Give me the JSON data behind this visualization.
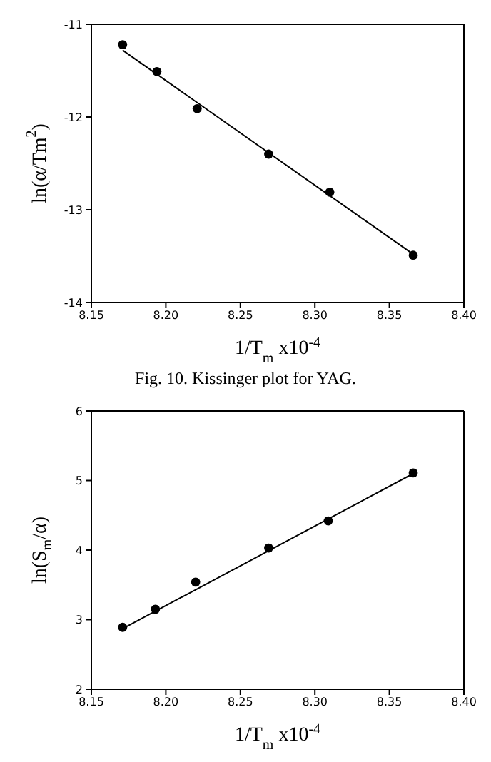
{
  "chart_data": [
    {
      "type": "scatter",
      "xlabel": "1/T$_{m}$ x10$^{-4}$",
      "ylabel": "ln(α/Tm$^{2}$)",
      "annotations": [
        "Fig. 10. Kissinger plot for YAG."
      ],
      "marker": "circle",
      "xlim": [
        8.15,
        8.4
      ],
      "xticks": [
        {
          "value": 8.15,
          "label": "8.15"
        },
        {
          "value": 8.2,
          "label": "8.20"
        },
        {
          "value": 8.25,
          "label": "8.25"
        },
        {
          "value": 8.3,
          "label": "8.30"
        },
        {
          "value": 8.35,
          "label": "8.35"
        },
        {
          "value": 8.4,
          "label": "8.40"
        }
      ],
      "ylim": [
        -14,
        -11
      ],
      "yticks": [
        -14,
        -13,
        -12,
        -11
      ],
      "series": [
        {
          "color": "#000000",
          "x": [
            8.171,
            8.194,
            8.221,
            8.269,
            8.31,
            8.366
          ],
          "values": [
            -11.22,
            -11.51,
            -11.91,
            -12.4,
            -12.81,
            -13.49
          ]
        },
        {
          "type": "line",
          "color": "#000000",
          "x": [
            8.171,
            8.366
          ],
          "values": [
            -11.28,
            -13.48
          ],
          "marker": "none"
        }
      ]
    },
    {
      "type": "scatter",
      "xlabel": "1/T$_{m}$ x10$^{-4}$",
      "ylabel": "ln(S$_{m}$/α)",
      "marker": "circle",
      "xlim": [
        8.15,
        8.4
      ],
      "xticks": [
        {
          "value": 8.15,
          "label": "8.15"
        },
        {
          "value": 8.2,
          "label": "8.20"
        },
        {
          "value": 8.25,
          "label": "8.25"
        },
        {
          "value": 8.3,
          "label": "8.30"
        },
        {
          "value": 8.35,
          "label": "8.35"
        },
        {
          "value": 8.4,
          "label": "8.40"
        }
      ],
      "ylim": [
        2,
        6
      ],
      "yticks": [
        2,
        3,
        4,
        5,
        6
      ],
      "series": [
        {
          "color": "#000000",
          "x": [
            8.171,
            8.193,
            8.22,
            8.269,
            8.309,
            8.366
          ],
          "values": [
            2.89,
            3.15,
            3.54,
            4.03,
            4.42,
            5.11
          ]
        },
        {
          "type": "line",
          "color": "#000000",
          "x": [
            8.171,
            8.366
          ],
          "values": [
            2.87,
            5.1
          ],
          "marker": "none"
        }
      ]
    }
  ]
}
